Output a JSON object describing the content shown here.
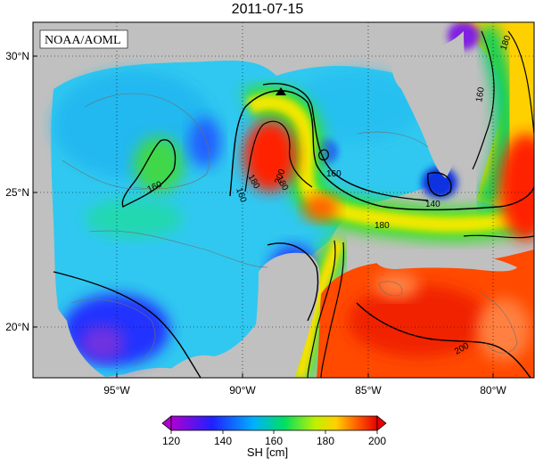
{
  "title": "2011-07-15",
  "credit": "NOAA/AOML",
  "lat_ticks": [
    "30°N",
    "25°N",
    "20°N"
  ],
  "lon_ticks": [
    "95°W",
    "90°W",
    "85°W",
    "80°W"
  ],
  "contour_labels": [
    "180",
    "160",
    "160",
    "160",
    "180",
    "200",
    "160",
    "140",
    "180",
    "180",
    "200"
  ],
  "colorbar": {
    "title": "SH [cm]",
    "ticks": [
      "120",
      "140",
      "160",
      "180",
      "200"
    ],
    "min": 120,
    "max": 200,
    "colors": [
      "#a000c8",
      "#1e32ff",
      "#00c8ff",
      "#00e040",
      "#ffff00",
      "#ff8000",
      "#e80000"
    ]
  },
  "marker": "triangle"
}
